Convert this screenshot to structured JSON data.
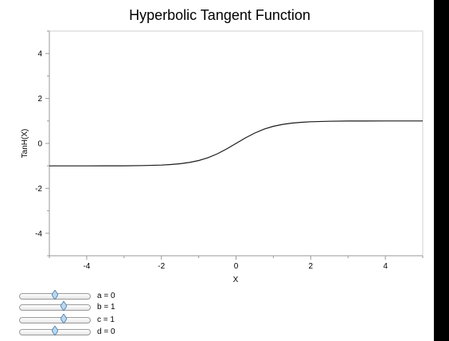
{
  "chart_data": {
    "type": "line",
    "title": "Hyperbolic Tangent Function",
    "xlabel": "X",
    "ylabel": "TanH(X)",
    "xlim": [
      -5,
      5
    ],
    "ylim": [
      -5,
      5
    ],
    "xticks": [
      -4,
      -2,
      0,
      2,
      4
    ],
    "yticks": [
      -4,
      -2,
      0,
      2,
      4
    ],
    "grid": false,
    "series": [
      {
        "x": [
          -5,
          -4.5,
          -4,
          -3.5,
          -3,
          -2.5,
          -2,
          -1.75,
          -1.5,
          -1.25,
          -1,
          -0.75,
          -0.5,
          -0.25,
          0,
          0.25,
          0.5,
          0.75,
          1,
          1.25,
          1.5,
          1.75,
          2,
          2.5,
          3,
          3.5,
          4,
          4.5,
          5
        ],
        "y": [
          -1.0,
          -1.0,
          -0.999,
          -0.998,
          -0.995,
          -0.987,
          -0.964,
          -0.941,
          -0.905,
          -0.848,
          -0.762,
          -0.635,
          -0.462,
          -0.245,
          0.0,
          0.245,
          0.462,
          0.635,
          0.762,
          0.848,
          0.905,
          0.941,
          0.964,
          0.987,
          0.995,
          0.998,
          0.999,
          1.0,
          1.0
        ]
      }
    ],
    "colors": {
      "line": "#1a1a1a",
      "axis": "#9a9a9a",
      "frame": "#d0d0d0"
    }
  },
  "controls": {
    "sliders": [
      {
        "label": "a = 0",
        "value": 0.5
      },
      {
        "label": "b = 1",
        "value": 0.625
      },
      {
        "label": "c = 1",
        "value": 0.625
      },
      {
        "label": "d = 0",
        "value": 0.5
      }
    ],
    "thumb_color": "#b8d8f0"
  }
}
